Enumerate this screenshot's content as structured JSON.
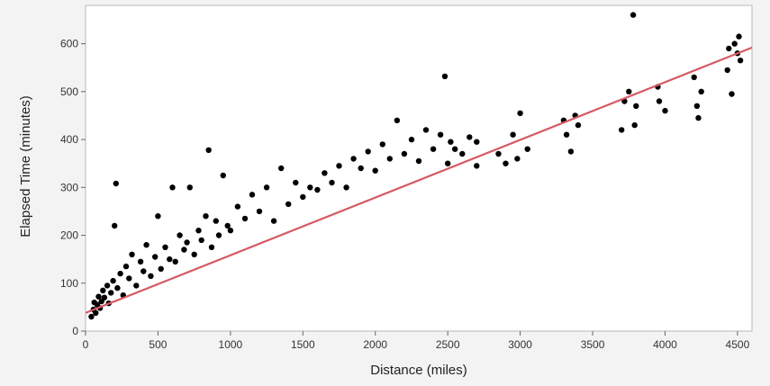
{
  "chart_data": {
    "type": "scatter",
    "title": "",
    "xlabel": "Distance (miles)",
    "ylabel": "Elapsed Time (minutes)",
    "xlim": [
      0,
      4600
    ],
    "ylim": [
      0,
      680
    ],
    "x_ticks": [
      0,
      500,
      1000,
      1500,
      2000,
      2500,
      3000,
      3500,
      4000,
      4500
    ],
    "y_ticks": [
      0,
      100,
      200,
      300,
      400,
      500,
      600
    ],
    "grid": false,
    "legend": "none",
    "colors": {
      "points": "#000000",
      "fit_line": "#d65a63",
      "plot_bg": "#ffffff",
      "page_bg": "#f3f3f3"
    },
    "fit_line": {
      "x": [
        0,
        4600
      ],
      "y": [
        38,
        592
      ]
    },
    "points": [
      [
        40,
        30
      ],
      [
        55,
        45
      ],
      [
        60,
        60
      ],
      [
        70,
        38
      ],
      [
        80,
        55
      ],
      [
        90,
        72
      ],
      [
        100,
        48
      ],
      [
        110,
        62
      ],
      [
        120,
        85
      ],
      [
        130,
        70
      ],
      [
        150,
        95
      ],
      [
        160,
        58
      ],
      [
        175,
        80
      ],
      [
        190,
        105
      ],
      [
        200,
        220
      ],
      [
        210,
        308
      ],
      [
        220,
        90
      ],
      [
        240,
        120
      ],
      [
        260,
        75
      ],
      [
        280,
        135
      ],
      [
        300,
        110
      ],
      [
        320,
        160
      ],
      [
        350,
        95
      ],
      [
        380,
        145
      ],
      [
        400,
        125
      ],
      [
        420,
        180
      ],
      [
        450,
        115
      ],
      [
        480,
        155
      ],
      [
        500,
        240
      ],
      [
        520,
        130
      ],
      [
        550,
        175
      ],
      [
        580,
        150
      ],
      [
        600,
        300
      ],
      [
        620,
        145
      ],
      [
        650,
        200
      ],
      [
        680,
        170
      ],
      [
        700,
        185
      ],
      [
        720,
        300
      ],
      [
        750,
        160
      ],
      [
        780,
        210
      ],
      [
        800,
        190
      ],
      [
        830,
        240
      ],
      [
        850,
        378
      ],
      [
        870,
        175
      ],
      [
        900,
        230
      ],
      [
        920,
        200
      ],
      [
        950,
        325
      ],
      [
        980,
        220
      ],
      [
        1000,
        210
      ],
      [
        1050,
        260
      ],
      [
        1100,
        235
      ],
      [
        1150,
        285
      ],
      [
        1200,
        250
      ],
      [
        1250,
        300
      ],
      [
        1300,
        230
      ],
      [
        1350,
        340
      ],
      [
        1400,
        265
      ],
      [
        1450,
        310
      ],
      [
        1500,
        280
      ],
      [
        1550,
        300
      ],
      [
        1600,
        295
      ],
      [
        1650,
        330
      ],
      [
        1700,
        310
      ],
      [
        1750,
        345
      ],
      [
        1800,
        300
      ],
      [
        1850,
        360
      ],
      [
        1900,
        340
      ],
      [
        1950,
        375
      ],
      [
        2000,
        335
      ],
      [
        2050,
        390
      ],
      [
        2100,
        360
      ],
      [
        2150,
        440
      ],
      [
        2200,
        370
      ],
      [
        2250,
        400
      ],
      [
        2300,
        355
      ],
      [
        2350,
        420
      ],
      [
        2400,
        380
      ],
      [
        2450,
        410
      ],
      [
        2480,
        532
      ],
      [
        2500,
        350
      ],
      [
        2520,
        395
      ],
      [
        2550,
        380
      ],
      [
        2600,
        370
      ],
      [
        2650,
        405
      ],
      [
        2700,
        345
      ],
      [
        2700,
        395
      ],
      [
        2850,
        370
      ],
      [
        2900,
        350
      ],
      [
        2950,
        410
      ],
      [
        2980,
        360
      ],
      [
        3000,
        455
      ],
      [
        3050,
        380
      ],
      [
        3300,
        440
      ],
      [
        3320,
        410
      ],
      [
        3350,
        375
      ],
      [
        3380,
        450
      ],
      [
        3400,
        430
      ],
      [
        3700,
        420
      ],
      [
        3720,
        480
      ],
      [
        3750,
        500
      ],
      [
        3780,
        660
      ],
      [
        3790,
        430
      ],
      [
        3800,
        470
      ],
      [
        3950,
        510
      ],
      [
        3960,
        480
      ],
      [
        4000,
        460
      ],
      [
        4200,
        530
      ],
      [
        4220,
        470
      ],
      [
        4230,
        445
      ],
      [
        4250,
        500
      ],
      [
        4430,
        545
      ],
      [
        4440,
        590
      ],
      [
        4460,
        495
      ],
      [
        4480,
        600
      ],
      [
        4500,
        580
      ],
      [
        4510,
        615
      ],
      [
        4520,
        565
      ]
    ]
  }
}
